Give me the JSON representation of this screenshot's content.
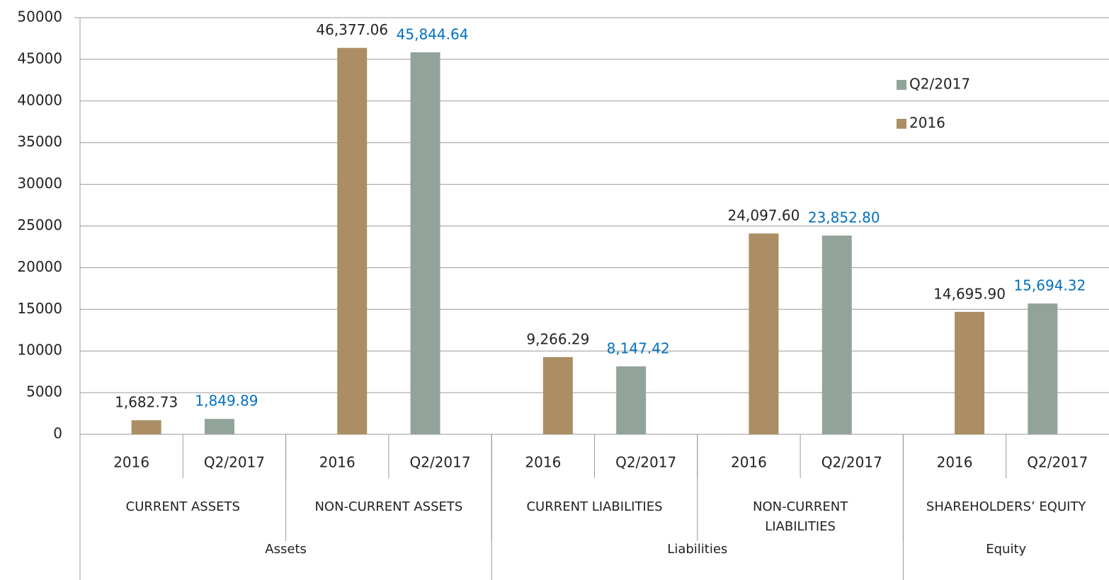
{
  "chart_data": {
    "type": "bar",
    "categories": [
      "2016",
      "Q2/2017",
      "2016",
      "Q2/2017",
      "2016",
      "Q2/2017",
      "2016",
      "Q2/2017",
      "2016",
      "Q2/2017"
    ],
    "groups": [
      "CURRENT  ASSETS",
      "NON-CURRENT  ASSETS",
      "CURRENT  LIABILITIES",
      "NON-CURRENT\nLIABILITIES",
      "SHAREHOLDERS’ EQUITY"
    ],
    "supergroups": [
      "Assets",
      "Liabilities",
      "Equity"
    ],
    "series": [
      {
        "name": "2016",
        "color": "#ab8e64",
        "label_color": "#222222",
        "values": [
          1682.73,
          null,
          46377.06,
          null,
          9266.29,
          null,
          24097.6,
          null,
          14695.9,
          null
        ],
        "value_labels": [
          "1,682.73",
          null,
          "46,377.06",
          null,
          "9,266.29",
          null,
          "24,097.60",
          null,
          "14,695.90",
          null
        ]
      },
      {
        "name": "Q2/2017",
        "color": "#92a39a",
        "label_color": "#0070c0",
        "values": [
          null,
          1849.89,
          null,
          45844.64,
          null,
          8147.42,
          null,
          23852.8,
          null,
          15694.32
        ],
        "value_labels": [
          null,
          "1,849.89",
          null,
          "45,844.64",
          null,
          "8,147.42",
          null,
          "23,852.80",
          null,
          "15,694.32"
        ]
      }
    ],
    "ylim": [
      0,
      50000
    ],
    "yticks": [
      0,
      5000,
      10000,
      15000,
      20000,
      25000,
      30000,
      35000,
      40000,
      45000,
      50000
    ],
    "grid": true,
    "legend": "upper right"
  }
}
